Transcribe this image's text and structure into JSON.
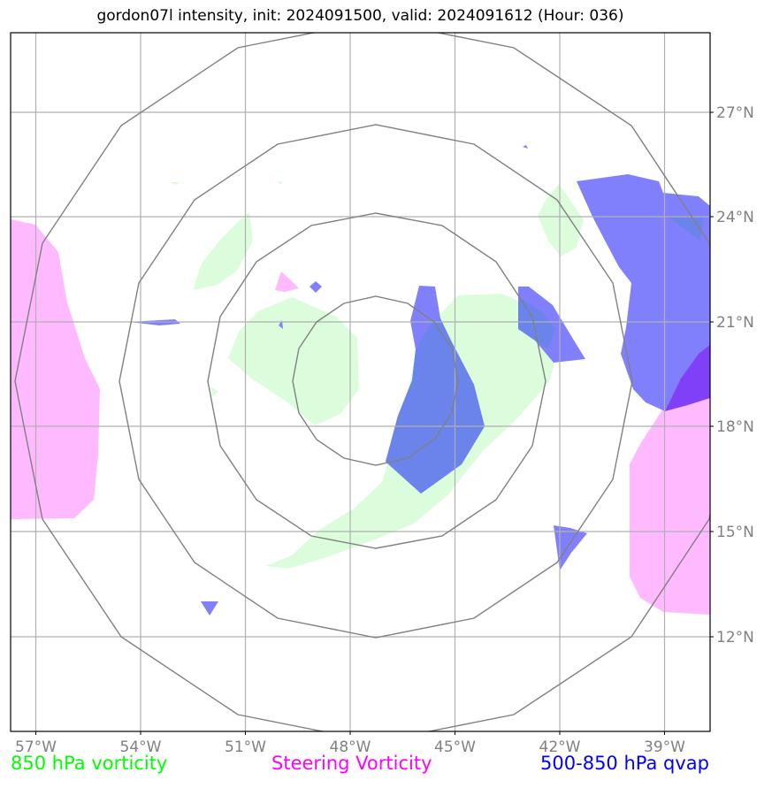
{
  "title": "gordon07l intensity, init: 2024091500, valid: 2024091612 (Hour: 036)",
  "map": {
    "lon_labels": [
      "57°W",
      "54°W",
      "51°W",
      "48°W",
      "45°W",
      "42°W",
      "39°W"
    ],
    "lat_labels": [
      "27°N",
      "24°N",
      "21°N",
      "18°N",
      "15°N",
      "12°N"
    ],
    "lon_range": [
      -57.7,
      -37.7
    ],
    "lat_range": [
      9.7,
      29.7
    ],
    "gridlines": true,
    "range_rings": 4
  },
  "legend": [
    {
      "label": "850 hPa vorticity",
      "color": "#00ff00"
    },
    {
      "label": "Steering Vorticity",
      "color": "#ff00ff"
    },
    {
      "label": "500-850 hPa qvap",
      "color": "#0000ff"
    }
  ],
  "colors": {
    "vorticity_850": "#dcfddc",
    "steering_vorticity": "#ffbaff",
    "qvap": "#8080fc",
    "overlap": "#6b84ec",
    "overlap_steering": "#8040f8",
    "grid": "#b0b0b0",
    "rings": "#808080"
  }
}
